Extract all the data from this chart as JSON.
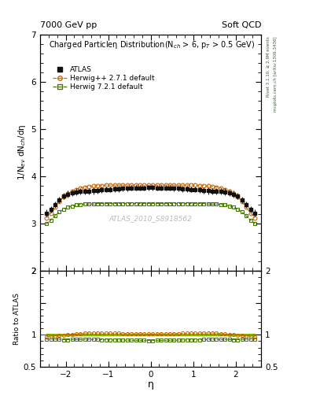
{
  "title_left": "7000 GeV pp",
  "title_right": "Soft QCD",
  "ylabel_main": "1/N$_{ev}$ dN$_{ch}$/dη",
  "ylabel_ratio": "Ratio to ATLAS",
  "xlabel": "η",
  "inner_title": "Charged Particleη Distribution(N$_{ch}$ > 6, p$_T$ > 0.5 GeV)",
  "watermark": "ATLAS_2010_S8918562",
  "right_label_top": "Rivet 3.1.10, ≥ 2.9M events",
  "right_label_bottom": "mcplots.cern.ch [arXiv:1306.3436]",
  "ylim_main": [
    2.0,
    7.0
  ],
  "ylim_ratio": [
    0.5,
    2.0
  ],
  "xlim": [
    -2.6,
    2.6
  ],
  "yticks_main": [
    2,
    3,
    4,
    5,
    6,
    7
  ],
  "yticks_ratio": [
    0.5,
    1.0,
    1.5,
    2.0
  ],
  "xticks": [
    -2,
    -1,
    0,
    1,
    2
  ],
  "atlas_color": "#111111",
  "herwig271_color": "#cc6600",
  "herwig721_color": "#447700",
  "band_yellow": "#ffff88",
  "band_green": "#99cc00",
  "eta_vals": [
    -2.45,
    -2.35,
    -2.25,
    -2.15,
    -2.05,
    -1.95,
    -1.85,
    -1.75,
    -1.65,
    -1.55,
    -1.45,
    -1.35,
    -1.25,
    -1.15,
    -1.05,
    -0.95,
    -0.85,
    -0.75,
    -0.65,
    -0.55,
    -0.45,
    -0.35,
    -0.25,
    -0.15,
    -0.05,
    0.05,
    0.15,
    0.25,
    0.35,
    0.45,
    0.55,
    0.65,
    0.75,
    0.85,
    0.95,
    1.05,
    1.15,
    1.25,
    1.35,
    1.45,
    1.55,
    1.65,
    1.75,
    1.85,
    1.95,
    2.05,
    2.15,
    2.25,
    2.35,
    2.45
  ],
  "atlas_vals": [
    3.22,
    3.3,
    3.4,
    3.5,
    3.58,
    3.62,
    3.65,
    3.67,
    3.68,
    3.68,
    3.68,
    3.69,
    3.7,
    3.71,
    3.72,
    3.72,
    3.73,
    3.73,
    3.74,
    3.74,
    3.75,
    3.75,
    3.75,
    3.75,
    3.76,
    3.76,
    3.75,
    3.75,
    3.75,
    3.75,
    3.74,
    3.74,
    3.73,
    3.73,
    3.72,
    3.72,
    3.71,
    3.7,
    3.69,
    3.68,
    3.68,
    3.68,
    3.67,
    3.65,
    3.62,
    3.58,
    3.5,
    3.4,
    3.3,
    3.22
  ],
  "atlas_err": [
    0.08,
    0.07,
    0.07,
    0.07,
    0.07,
    0.07,
    0.07,
    0.07,
    0.07,
    0.07,
    0.07,
    0.07,
    0.07,
    0.07,
    0.06,
    0.06,
    0.06,
    0.06,
    0.06,
    0.06,
    0.06,
    0.06,
    0.06,
    0.06,
    0.06,
    0.06,
    0.06,
    0.06,
    0.06,
    0.06,
    0.06,
    0.06,
    0.06,
    0.06,
    0.06,
    0.06,
    0.07,
    0.07,
    0.07,
    0.07,
    0.07,
    0.07,
    0.07,
    0.07,
    0.07,
    0.07,
    0.07,
    0.07,
    0.07,
    0.08
  ],
  "herwig271_vals": [
    3.12,
    3.22,
    3.34,
    3.46,
    3.56,
    3.63,
    3.68,
    3.72,
    3.75,
    3.77,
    3.78,
    3.79,
    3.8,
    3.8,
    3.81,
    3.81,
    3.81,
    3.81,
    3.81,
    3.81,
    3.81,
    3.81,
    3.81,
    3.81,
    3.81,
    3.81,
    3.81,
    3.81,
    3.81,
    3.81,
    3.81,
    3.81,
    3.81,
    3.81,
    3.81,
    3.81,
    3.8,
    3.8,
    3.79,
    3.78,
    3.77,
    3.75,
    3.72,
    3.68,
    3.63,
    3.56,
    3.46,
    3.34,
    3.22,
    3.12
  ],
  "herwig721_vals": [
    2.99,
    3.07,
    3.16,
    3.24,
    3.3,
    3.34,
    3.37,
    3.39,
    3.4,
    3.41,
    3.41,
    3.41,
    3.42,
    3.42,
    3.42,
    3.42,
    3.42,
    3.42,
    3.42,
    3.42,
    3.42,
    3.42,
    3.42,
    3.42,
    3.42,
    3.42,
    3.42,
    3.42,
    3.42,
    3.42,
    3.42,
    3.42,
    3.42,
    3.42,
    3.42,
    3.42,
    3.42,
    3.42,
    3.41,
    3.41,
    3.41,
    3.4,
    3.39,
    3.37,
    3.34,
    3.3,
    3.24,
    3.16,
    3.07,
    2.99
  ]
}
